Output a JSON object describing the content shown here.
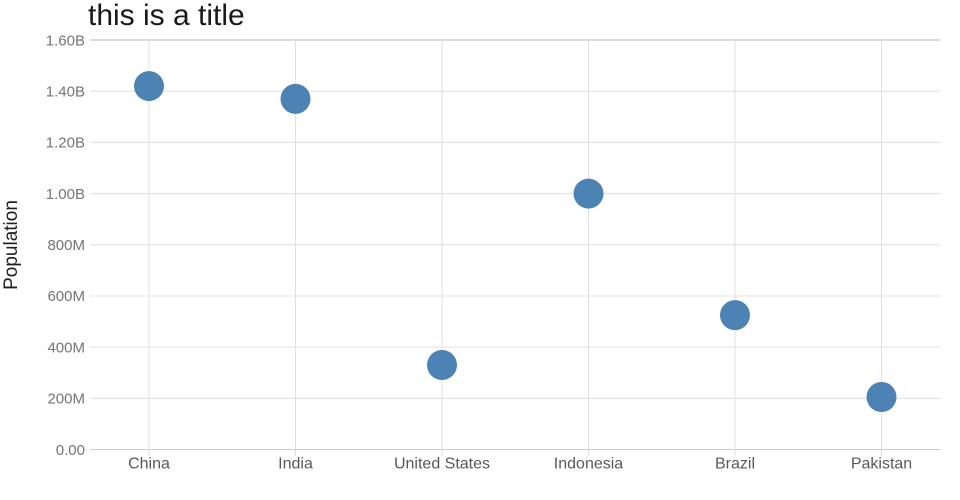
{
  "chart_data": {
    "type": "scatter",
    "title": "this is a title",
    "xlabel": "",
    "ylabel": "Population",
    "categories": [
      "China",
      "India",
      "United States",
      "Indonesia",
      "Brazil",
      "Pakistan"
    ],
    "values": [
      1420000000,
      1370000000,
      330000000,
      1000000000,
      525000000,
      205000000
    ],
    "ylim": [
      0,
      1600000000
    ],
    "ytick_values": [
      0,
      200000000,
      400000000,
      600000000,
      800000000,
      1000000000,
      1200000000,
      1400000000,
      1600000000
    ],
    "ytick_labels": [
      "0.00",
      "200M",
      "400M",
      "600M",
      "800M",
      "1.00B",
      "1.20B",
      "1.40B",
      "1.60B"
    ],
    "grid": true,
    "legend": false,
    "marker": {
      "shape": "circle",
      "radius_px": 15
    }
  },
  "colors": {
    "marker": "#4c82b4",
    "gridline": "#e0e0e0",
    "top_gridline": "#b9b9b2",
    "axis_line": "#cfcfcf",
    "tick_mark": "#d9d9d9",
    "y_tick_label": "#757575",
    "x_category_label": "#595959",
    "title": "#1a1a1a",
    "axis_title": "#1f1f1f",
    "background": "#ffffff"
  }
}
